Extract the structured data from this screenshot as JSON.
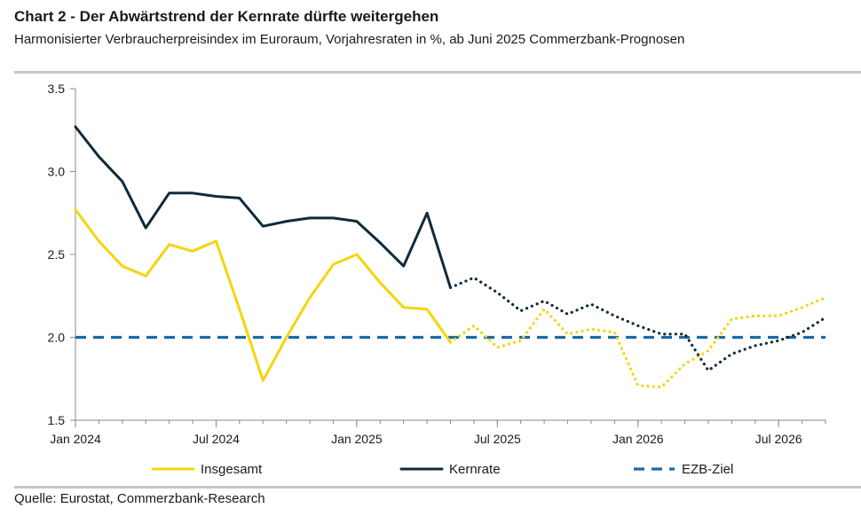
{
  "header": {
    "title": "Chart 2 - Der Abwärtstrend der Kernrate dürfte weitergehen",
    "subtitle": "Harmonisierter Verbraucherpreisindex im Euroraum, Vorjahresraten in %, ab Juni 2025 Commerzbank-Prognosen"
  },
  "footer": {
    "source": "Quelle: Eurostat, Commerzbank-Research"
  },
  "colors": {
    "insgesamt": "#f5d50c",
    "kernrate": "#0f2a3a",
    "ezb": "#1a6aa8",
    "axis": "#888888"
  },
  "chart_data": {
    "type": "line",
    "title": "Chart 2 - Der Abwärtstrend der Kernrate dürfte weitergehen",
    "ylabel": "Vorjahresraten in %",
    "xlabel": "",
    "ylim": [
      1.5,
      3.5
    ],
    "yticks": [
      1.5,
      2.0,
      2.5,
      3.0,
      3.5
    ],
    "ytick_labels": [
      "1.5",
      "2.0",
      "2.5",
      "3.0",
      "3.5"
    ],
    "xlim": [
      0,
      32
    ],
    "xticks": [
      {
        "x": 0,
        "label": "Jan 2024"
      },
      {
        "x": 6,
        "label": "Jul 2024"
      },
      {
        "x": 12,
        "label": "Jan 2025"
      },
      {
        "x": 18,
        "label": "Jul 2025"
      },
      {
        "x": 24,
        "label": "Jan 2026"
      },
      {
        "x": 30,
        "label": "Jul 2026"
      }
    ],
    "x_unit": "Monate ab Jan 2024",
    "forecast_from": "Jun 2025",
    "series": [
      {
        "key": "insgesamt",
        "name": "Insgesamt",
        "style": "solid",
        "x": [
          0,
          1,
          2,
          3,
          4,
          5,
          6,
          7,
          8,
          9,
          10,
          11,
          12,
          13,
          14,
          15,
          16
        ],
        "values": [
          2.77,
          2.58,
          2.43,
          2.37,
          2.56,
          2.52,
          2.58,
          2.17,
          1.74,
          2.0,
          2.24,
          2.44,
          2.5,
          2.33,
          2.18,
          2.17,
          1.97
        ]
      },
      {
        "key": "insgesamt_forecast",
        "name": "Insgesamt (Prognose)",
        "style": "dotted",
        "x": [
          16,
          17,
          18,
          19,
          20,
          21,
          22,
          23,
          24,
          25,
          26,
          27,
          28,
          29,
          30,
          31,
          32
        ],
        "values": [
          1.97,
          2.07,
          1.94,
          1.98,
          2.17,
          2.02,
          2.05,
          2.03,
          1.71,
          1.7,
          1.84,
          1.92,
          2.11,
          2.13,
          2.13,
          2.18,
          2.24
        ]
      },
      {
        "key": "kernrate",
        "name": "Kernrate",
        "style": "solid",
        "x": [
          0,
          1,
          2,
          3,
          4,
          5,
          6,
          7,
          8,
          9,
          10,
          11,
          12,
          13,
          14,
          15,
          16
        ],
        "values": [
          3.27,
          3.09,
          2.94,
          2.66,
          2.87,
          2.87,
          2.85,
          2.84,
          2.67,
          2.7,
          2.72,
          2.72,
          2.7,
          2.57,
          2.43,
          2.75,
          2.3
        ]
      },
      {
        "key": "kernrate_forecast",
        "name": "Kernrate (Prognose)",
        "style": "dotted",
        "x": [
          16,
          17,
          18,
          19,
          20,
          21,
          22,
          23,
          24,
          25,
          26,
          27,
          28,
          29,
          30,
          31,
          32
        ],
        "values": [
          2.3,
          2.36,
          2.27,
          2.16,
          2.22,
          2.14,
          2.2,
          2.13,
          2.07,
          2.02,
          2.02,
          1.8,
          1.9,
          1.95,
          1.98,
          2.03,
          2.12
        ]
      },
      {
        "key": "ezb",
        "name": "EZB-Ziel",
        "style": "dashed",
        "x": [
          0,
          32
        ],
        "values": [
          2.0,
          2.0
        ]
      }
    ],
    "legend": {
      "position": "bottom",
      "entries": [
        {
          "key": "insgesamt",
          "label": "Insgesamt"
        },
        {
          "key": "kernrate",
          "label": "Kernrate"
        },
        {
          "key": "ezb",
          "label": "EZB-Ziel"
        }
      ]
    }
  }
}
